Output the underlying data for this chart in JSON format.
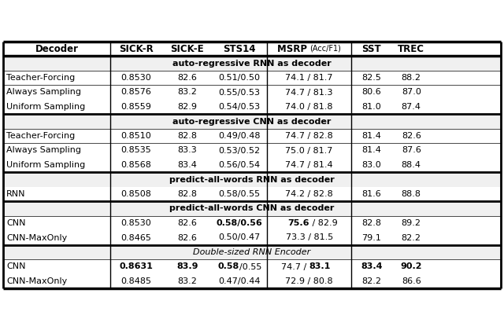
{
  "col_headers": [
    "Decoder",
    "SICK-R",
    "SICK-E",
    "STS14",
    "MSRP",
    "Acc_F1",
    "SST",
    "TREC"
  ],
  "sections": [
    {
      "section_label": "auto-regressive RNN as decoder",
      "section_bold": true,
      "rows": [
        [
          "Teacher-Forcing",
          "0.8530",
          "82.6",
          "0.51/0.50",
          "74.1 / 81.7",
          "82.5",
          "88.2",
          []
        ],
        [
          "Always Sampling",
          "0.8576",
          "83.2",
          "0.55/0.53",
          "74.7 / 81.3",
          "80.6",
          "87.0",
          []
        ],
        [
          "Uniform Sampling",
          "0.8559",
          "82.9",
          "0.54/0.53",
          "74.0 / 81.8",
          "81.0",
          "87.4",
          []
        ]
      ]
    },
    {
      "section_label": "auto-regressive CNN as decoder",
      "section_bold": true,
      "rows": [
        [
          "Teacher-Forcing",
          "0.8510",
          "82.8",
          "0.49/0.48",
          "74.7 / 82.8",
          "81.4",
          "82.6",
          []
        ],
        [
          "Always Sampling",
          "0.8535",
          "83.3",
          "0.53/0.52",
          "75.0 / 81.7",
          "81.4",
          "87.6",
          []
        ],
        [
          "Uniform Sampling",
          "0.8568",
          "83.4",
          "0.56/0.54",
          "74.7 / 81.4",
          "83.0",
          "88.4",
          []
        ]
      ]
    },
    {
      "section_label": "predict-all-words RNN as decoder",
      "section_bold": true,
      "rows": [
        [
          "RNN",
          "0.8508",
          "82.8",
          "0.58/0.55",
          "74.2 / 82.8",
          "81.6",
          "88.8",
          []
        ]
      ]
    },
    {
      "section_label": "predict-all-words CNN as decoder",
      "section_bold": true,
      "rows": [
        [
          "CNN",
          "0.8530",
          "82.6",
          "0.58/0.56",
          "75.6 / 82.9",
          "82.8",
          "89.2",
          [
            "sts14_all",
            "msrp_part1"
          ]
        ],
        [
          "CNN-MaxOnly",
          "0.8465",
          "82.6",
          "0.50/0.47",
          "73.3 / 81.5",
          "79.1",
          "82.2",
          []
        ]
      ]
    },
    {
      "section_label": "Double-sized RNN Encoder",
      "section_bold": false,
      "rows": [
        [
          "CNN",
          "0.8631",
          "83.9",
          "0.58/0.55",
          "74.7 / 83.1",
          "83.4",
          "90.2",
          [
            "col1_all",
            "col2_all",
            "sts14_part1",
            "msrp_part2",
            "col5_all",
            "col6_all"
          ]
        ],
        [
          "CNN-MaxOnly",
          "0.8485",
          "83.2",
          "0.47/0.44",
          "72.9 / 80.8",
          "82.2",
          "86.6",
          []
        ]
      ]
    }
  ],
  "font_size": 8.0,
  "header_font_size": 8.5
}
